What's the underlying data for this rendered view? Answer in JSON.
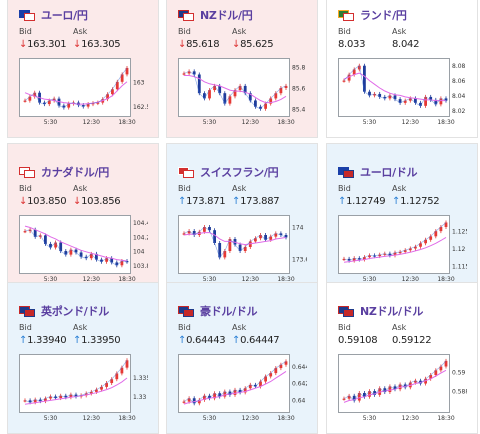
{
  "labels": {
    "bid": "Bid",
    "ask": "Ask"
  },
  "colors": {
    "down_bg": "#fbeaea",
    "up_bg": "#e9f3fb",
    "flat_bg": "#ffffff",
    "title": "#5a3fa0",
    "down_arrow": "#d33333",
    "up_arrow": "#2a7fd4",
    "ma_line": "#e06be8",
    "bull_candle": "#e53935",
    "bear_candle": "#1f3c9b"
  },
  "cards": [
    {
      "id": "eurjpy",
      "name": "ユーロ/円",
      "trend": "down",
      "flags": [
        "eu-flag-icon",
        "jp-flag-icon"
      ],
      "bid": "163.301",
      "ask": "163.305",
      "bid_dir": "down",
      "ask_dir": "down",
      "chart": {
        "y_ticks": [
          "163",
          "162.5"
        ],
        "x_ticks": [
          "5:30",
          "12:30",
          "18:30"
        ],
        "price": [
          162.62,
          162.7,
          162.78,
          162.58,
          162.55,
          162.62,
          162.66,
          162.52,
          162.48,
          162.56,
          162.58,
          162.53,
          162.5,
          162.55,
          162.57,
          162.58,
          162.65,
          162.75,
          162.85,
          163.0,
          163.15,
          163.28
        ],
        "ma": [
          162.78,
          162.74,
          162.71,
          162.68,
          162.65,
          162.64,
          162.62,
          162.6,
          162.58,
          162.57,
          162.56,
          162.55,
          162.55,
          162.56,
          162.57,
          162.59,
          162.62,
          162.66,
          162.72,
          162.82,
          162.92,
          163.0
        ],
        "ylim": [
          162.35,
          163.4
        ]
      }
    },
    {
      "id": "nzdjpy",
      "name": "NZドル/円",
      "trend": "down",
      "flags": [
        "nz-flag-icon",
        "jp-flag-icon"
      ],
      "bid": "85.618",
      "ask": "85.625",
      "bid_dir": "down",
      "ask_dir": "down",
      "chart": {
        "y_ticks": [
          "85.8",
          "85.6",
          "85.4"
        ],
        "x_ticks": [
          "5:30",
          "12:30",
          "18:30"
        ],
        "price": [
          85.74,
          85.76,
          85.73,
          85.55,
          85.5,
          85.58,
          85.62,
          85.55,
          85.45,
          85.52,
          85.58,
          85.62,
          85.55,
          85.48,
          85.42,
          85.4,
          85.45,
          85.5,
          85.55,
          85.6,
          85.62
        ],
        "ma": [
          85.72,
          85.72,
          85.71,
          85.69,
          85.66,
          85.64,
          85.63,
          85.62,
          85.6,
          85.58,
          85.57,
          85.57,
          85.56,
          85.54,
          85.51,
          85.48,
          85.46,
          85.46,
          85.47,
          85.49,
          85.52
        ],
        "ylim": [
          85.35,
          85.85
        ]
      }
    },
    {
      "id": "zarjpy",
      "name": "ランド/円",
      "trend": "flat",
      "flags": [
        "za-flag-icon",
        "jp-flag-icon"
      ],
      "bid": "8.033",
      "ask": "8.042",
      "bid_dir": "none",
      "ask_dir": "none",
      "chart": {
        "y_ticks": [
          "8.08",
          "8.06",
          "8.04",
          "8.02"
        ],
        "x_ticks": [
          "5:30",
          "12:30",
          "18:30"
        ],
        "price": [
          8.06,
          8.068,
          8.075,
          8.08,
          8.045,
          8.04,
          8.042,
          8.038,
          8.036,
          8.04,
          8.035,
          8.03,
          8.033,
          8.036,
          8.03,
          8.026,
          8.038,
          8.034,
          8.028,
          8.036,
          8.033
        ],
        "ma": [
          8.062,
          8.065,
          8.068,
          8.07,
          8.066,
          8.06,
          8.055,
          8.05,
          8.046,
          8.043,
          8.041,
          8.04,
          8.038,
          8.037,
          8.036,
          8.035,
          8.034,
          8.034,
          8.033,
          8.033,
          8.033
        ],
        "ylim": [
          8.015,
          8.085
        ]
      }
    },
    {
      "id": "cadjpy",
      "name": "カナダドル/円",
      "trend": "down",
      "flags": [
        "ca-flag-icon",
        "jp-flag-icon"
      ],
      "bid": "103.850",
      "ask": "103.856",
      "bid_dir": "down",
      "ask_dir": "down",
      "chart": {
        "y_ticks": [
          "104.4",
          "104.2",
          "104",
          "103.8"
        ],
        "x_ticks": [
          "5:30",
          "12:30",
          "18:30"
        ],
        "price": [
          104.28,
          104.3,
          104.2,
          104.22,
          104.1,
          104.05,
          104.12,
          104.0,
          103.95,
          104.02,
          103.98,
          103.92,
          103.9,
          103.96,
          103.88,
          103.85,
          103.9,
          103.84,
          103.8,
          103.86,
          103.85
        ],
        "ma": [
          104.35,
          104.33,
          104.3,
          104.27,
          104.24,
          104.2,
          104.17,
          104.13,
          104.1,
          104.07,
          104.04,
          104.01,
          103.99,
          103.97,
          103.95,
          103.93,
          103.91,
          103.9,
          103.88,
          103.87,
          103.86
        ],
        "ylim": [
          103.72,
          104.45
        ]
      }
    },
    {
      "id": "chfjpy",
      "name": "スイスフラン/円",
      "trend": "up",
      "flags": [
        "ch-flag-icon",
        "jp-flag-icon"
      ],
      "bid": "173.871",
      "ask": "173.887",
      "bid_dir": "up",
      "ask_dir": "up",
      "chart": {
        "y_ticks": [
          "174",
          "173.6"
        ],
        "x_ticks": [
          "5:30",
          "12:30",
          "18:30"
        ],
        "price": [
          173.92,
          173.95,
          173.9,
          173.94,
          174.0,
          173.96,
          173.8,
          173.62,
          173.7,
          173.85,
          173.78,
          173.7,
          173.75,
          173.82,
          173.86,
          173.9,
          173.84,
          173.88,
          173.92,
          173.9,
          173.87
        ],
        "ma": [
          173.9,
          173.91,
          173.91,
          173.92,
          173.93,
          173.93,
          173.9,
          173.85,
          173.82,
          173.82,
          173.81,
          173.79,
          173.78,
          173.79,
          173.8,
          173.81,
          173.82,
          173.83,
          173.85,
          173.86,
          173.87
        ],
        "ylim": [
          173.45,
          174.1
        ]
      }
    },
    {
      "id": "eurusd",
      "name": "ユーロ/ドル",
      "trend": "up",
      "flags": [
        "eu-flag-icon",
        "us-flag-icon"
      ],
      "bid": "1.12749",
      "ask": "1.12752",
      "bid_dir": "up",
      "ask_dir": "up",
      "chart": {
        "y_ticks": [
          "1.125",
          "1.12",
          "1.115"
        ],
        "x_ticks": [
          "5:30",
          "12:30",
          "18:30"
        ],
        "price": [
          1.117,
          1.1165,
          1.1172,
          1.1168,
          1.1175,
          1.118,
          1.1178,
          1.1182,
          1.1185,
          1.118,
          1.1188,
          1.119,
          1.1195,
          1.12,
          1.1205,
          1.1215,
          1.1225,
          1.1235,
          1.125,
          1.1262,
          1.1275
        ],
        "ma": [
          1.116,
          1.1162,
          1.1164,
          1.1166,
          1.1168,
          1.1171,
          1.1173,
          1.1175,
          1.1177,
          1.1179,
          1.1181,
          1.1183,
          1.1186,
          1.1189,
          1.1193,
          1.1197,
          1.1202,
          1.1208,
          1.1215,
          1.1223,
          1.1232
        ],
        "ylim": [
          1.1135,
          1.1285
        ]
      }
    },
    {
      "id": "gbpusd",
      "name": "英ポンド/ドル",
      "trend": "up",
      "flags": [
        "gb-flag-icon",
        "us-flag-icon"
      ],
      "bid": "1.33940",
      "ask": "1.33950",
      "bid_dir": "up",
      "ask_dir": "up",
      "chart": {
        "y_ticks": [
          "1.335",
          "1.33"
        ],
        "x_ticks": [
          "5:30",
          "12:30",
          "18:30"
        ],
        "price": [
          1.329,
          1.3285,
          1.3292,
          1.3288,
          1.3295,
          1.33,
          1.3296,
          1.3302,
          1.3298,
          1.3305,
          1.33,
          1.3303,
          1.3308,
          1.3312,
          1.3318,
          1.3325,
          1.3335,
          1.3345,
          1.336,
          1.3375,
          1.3394
        ],
        "ma": [
          1.328,
          1.3282,
          1.3284,
          1.3286,
          1.3288,
          1.329,
          1.3292,
          1.3294,
          1.3296,
          1.3298,
          1.33,
          1.3302,
          1.3304,
          1.3307,
          1.331,
          1.3314,
          1.3318,
          1.3323,
          1.333,
          1.3338,
          1.3348
        ],
        "ylim": [
          1.3265,
          1.34
        ]
      }
    },
    {
      "id": "audusd",
      "name": "豪ドル/ドル",
      "trend": "up",
      "flags": [
        "au-flag-icon",
        "us-flag-icon"
      ],
      "bid": "0.64443",
      "ask": "0.64447",
      "bid_dir": "up",
      "ask_dir": "up",
      "chart": {
        "y_ticks": [
          "0.644",
          "0.642",
          "0.64"
        ],
        "x_ticks": [
          "5:30",
          "12:30",
          "18:30"
        ],
        "price": [
          0.6398,
          0.6402,
          0.6396,
          0.64,
          0.6405,
          0.6402,
          0.6408,
          0.6404,
          0.641,
          0.6406,
          0.6412,
          0.6409,
          0.6414,
          0.6418,
          0.6416,
          0.6422,
          0.6428,
          0.6432,
          0.6438,
          0.6442,
          0.6446
        ],
        "ma": [
          0.6395,
          0.6397,
          0.6398,
          0.6399,
          0.6401,
          0.6402,
          0.6403,
          0.6404,
          0.6406,
          0.6407,
          0.6408,
          0.6409,
          0.641,
          0.6412,
          0.6414,
          0.6416,
          0.6419,
          0.6422,
          0.6426,
          0.643,
          0.6434
        ],
        "ylim": [
          0.6388,
          0.645
        ]
      }
    },
    {
      "id": "nzdusd",
      "name": "NZドル/ドル",
      "trend": "flat",
      "flags": [
        "nz-flag-icon",
        "us-flag-icon"
      ],
      "bid": "0.59108",
      "ask": "0.59122",
      "bid_dir": "none",
      "ask_dir": "none",
      "chart": {
        "y_ticks": [
          "0.59",
          "0.588"
        ],
        "x_ticks": [
          "5:30",
          "12:30",
          "18:30"
        ],
        "price": [
          0.5872,
          0.5875,
          0.587,
          0.5878,
          0.5874,
          0.588,
          0.5876,
          0.5883,
          0.5879,
          0.5885,
          0.5882,
          0.5887,
          0.5884,
          0.5889,
          0.5891,
          0.5888,
          0.5893,
          0.5897,
          0.5902,
          0.5906,
          0.5912
        ],
        "ma": [
          0.5868,
          0.587,
          0.5871,
          0.5873,
          0.5874,
          0.5876,
          0.5877,
          0.5879,
          0.588,
          0.5881,
          0.5882,
          0.5884,
          0.5885,
          0.5886,
          0.5888,
          0.5889,
          0.5891,
          0.5893,
          0.5896,
          0.5899,
          0.5902
        ],
        "ylim": [
          0.586,
          0.5915
        ]
      }
    }
  ]
}
